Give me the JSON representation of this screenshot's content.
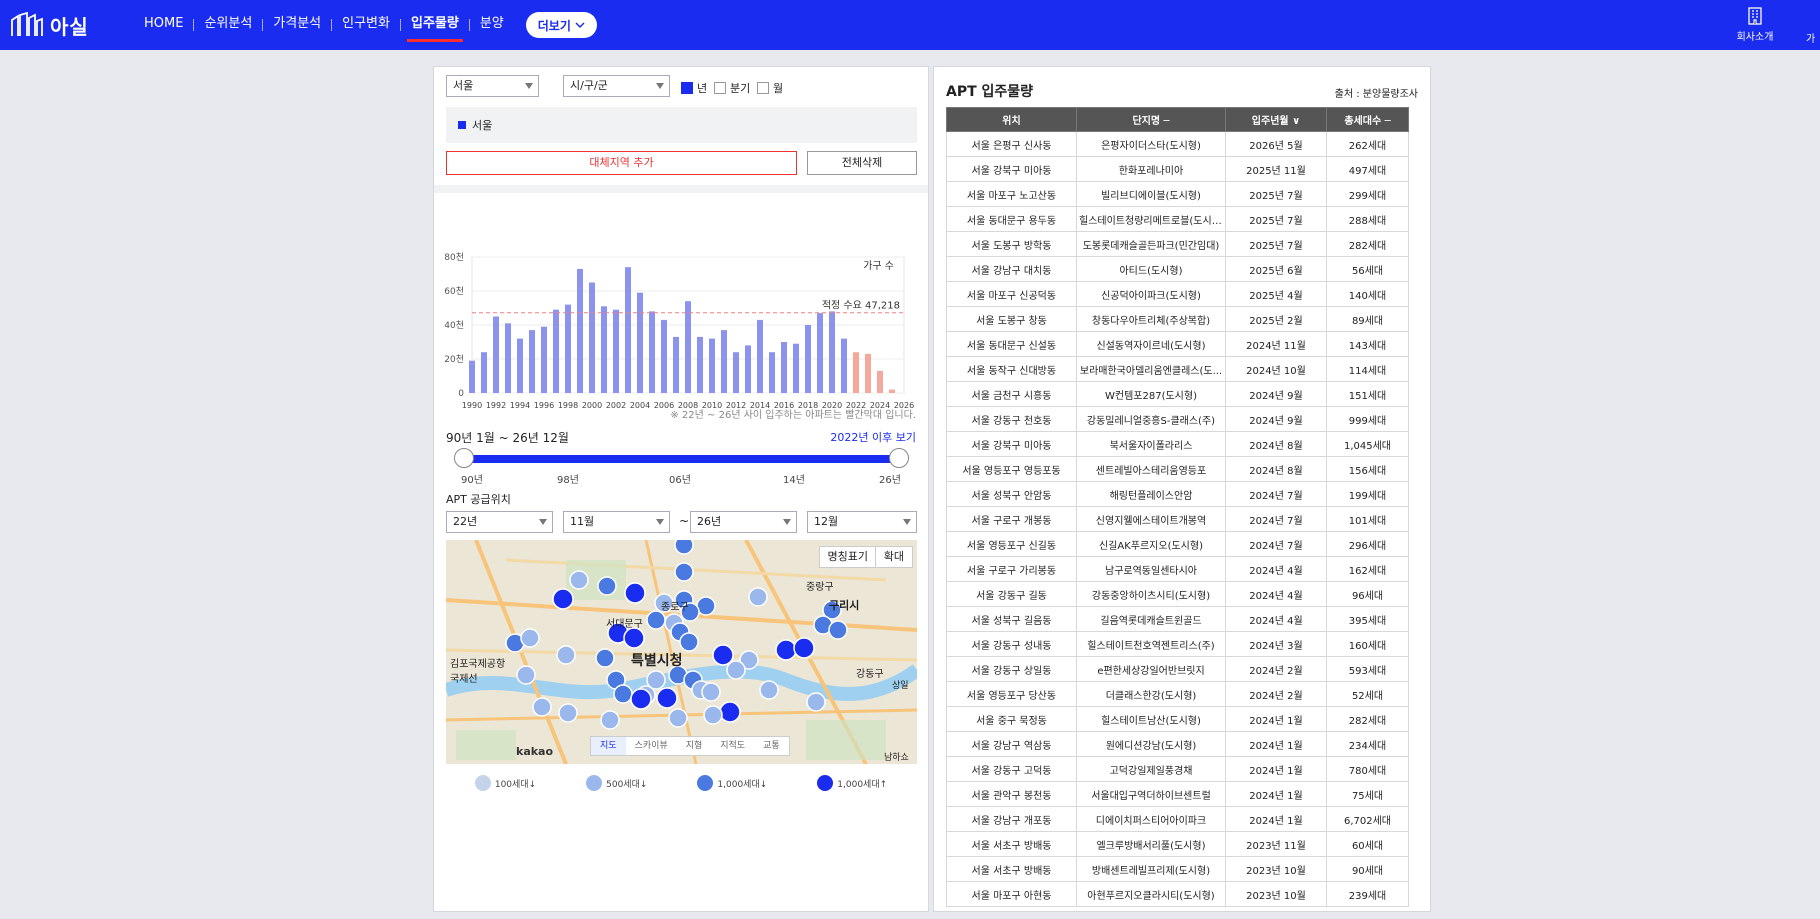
{
  "header": {
    "brand": "아실",
    "nav": [
      {
        "label": "HOME",
        "active": false
      },
      {
        "label": "순위분석",
        "active": false
      },
      {
        "label": "가격분석",
        "active": false
      },
      {
        "label": "인구변화",
        "active": false
      },
      {
        "label": "입주물량",
        "active": true
      },
      {
        "label": "분양",
        "active": false
      }
    ],
    "more_label": "더보기",
    "company_label": "회사소개",
    "edge_label": "가"
  },
  "filters": {
    "region": "서울",
    "district": "시/구/군",
    "periods": [
      {
        "label": "년",
        "checked": true
      },
      {
        "label": "분기",
        "checked": false
      },
      {
        "label": "월",
        "checked": false
      }
    ],
    "selected_region_chip": "서울",
    "add_button": "대체지역 추가",
    "clear_button": "전체삭제"
  },
  "chart_data": {
    "type": "bar",
    "series_label": "가구 수",
    "yticks": [
      "80천",
      "60천",
      "40천",
      "20천",
      "0"
    ],
    "xticks": [
      "1990",
      "1992",
      "1994",
      "1996",
      "1998",
      "2000",
      "2002",
      "2004",
      "2006",
      "2008",
      "2010",
      "2012",
      "2014",
      "2016",
      "2018",
      "2020",
      "2022",
      "2024",
      "2026"
    ],
    "ylim": [
      0,
      80000
    ],
    "x": [
      1990,
      1991,
      1992,
      1993,
      1994,
      1995,
      1996,
      1997,
      1998,
      1999,
      2000,
      2001,
      2002,
      2003,
      2004,
      2005,
      2006,
      2007,
      2008,
      2009,
      2010,
      2011,
      2012,
      2013,
      2014,
      2015,
      2016,
      2017,
      2018,
      2019,
      2020,
      2021,
      2022,
      2023,
      2024,
      2025,
      2026
    ],
    "values": [
      19000,
      24000,
      45000,
      41000,
      32000,
      37000,
      39000,
      49000,
      52000,
      73000,
      65000,
      51000,
      49000,
      74000,
      59000,
      48000,
      43000,
      33000,
      54000,
      33000,
      32000,
      37000,
      24000,
      28000,
      43000,
      24000,
      30000,
      29000,
      40000,
      47000,
      48000,
      32000,
      24000,
      23000,
      13000,
      2000,
      0
    ],
    "future_start": 2022,
    "reference_line": {
      "label": "적정 수요 47,218",
      "value": 47218
    },
    "colors": {
      "past": "#8c93ef",
      "future": "#f5a99d",
      "reference": "#f08080"
    },
    "note": "※ 22년 ~ 26년 사이 입주하는 아파트는 빨간막대 입니다."
  },
  "period": {
    "label": "90년 1월 ~ 26년 12월",
    "link": "2022년 이후 보기",
    "ticks": [
      "90년",
      "98년",
      "06년",
      "14년",
      "26년"
    ]
  },
  "supply": {
    "title": "APT 공급위치",
    "from_year": "22년",
    "from_month": "11월",
    "tilde": "~",
    "to_year": "26년",
    "to_month": "12월"
  },
  "map": {
    "name_btn": "명칭표기",
    "zoom_btn": "확대",
    "tabs": [
      {
        "label": "지도",
        "active": true
      },
      {
        "label": "스카이뷰",
        "active": false
      },
      {
        "label": "지형",
        "active": false
      },
      {
        "label": "지적도",
        "active": false
      },
      {
        "label": "교통",
        "active": false
      }
    ],
    "brand": "kakao",
    "labels": [
      "종로구",
      "서대문구",
      "특별시청",
      "구리시",
      "김포국제공항 국제선",
      "중랑구",
      "강동구",
      "상일",
      "남하쇼"
    ],
    "legend": [
      {
        "label": "100세대↓",
        "color": "#c5d3ea"
      },
      {
        "label": "500세대↓",
        "color": "#9bb8ec"
      },
      {
        "label": "1,000세대↓",
        "color": "#4a79e0"
      },
      {
        "label": "1,000세대↑",
        "color": "#1a2cf0"
      }
    ]
  },
  "apt": {
    "title": "APT 입주물량",
    "source": "출처 : 분양물량조사",
    "columns": [
      "위치",
      "단지명 ─",
      "입주년월 ∨",
      "총세대수 ─"
    ],
    "rows": [
      [
        "서울 은평구 신사동",
        "은평자이더스타(도시형)",
        "2026년 5월",
        "262세대"
      ],
      [
        "서울 강북구 미아동",
        "한화포레나미아",
        "2025년 11월",
        "497세대"
      ],
      [
        "서울 마포구 노고산동",
        "빌리브디에이블(도시형)",
        "2025년 7월",
        "299세대"
      ],
      [
        "서울 동대문구 용두동",
        "힐스테이트청량리메트로블(도시형)",
        "2025년 7월",
        "288세대"
      ],
      [
        "서울 도봉구 방학동",
        "도봉롯데캐슬골든파크(민간임대)",
        "2025년 7월",
        "282세대"
      ],
      [
        "서울 강남구 대치동",
        "아티드(도시형)",
        "2025년 6월",
        "56세대"
      ],
      [
        "서울 마포구 신공덕동",
        "신공덕아이파크(도시형)",
        "2025년 4월",
        "140세대"
      ],
      [
        "서울 도봉구 창동",
        "창동다우아트리체(주상복합)",
        "2025년 2월",
        "89세대"
      ],
      [
        "서울 동대문구 신설동",
        "신설동역자이르네(도시형)",
        "2024년 11월",
        "143세대"
      ],
      [
        "서울 동작구 신대방동",
        "보라매한국아델리움엔클레스(도...",
        "2024년 10월",
        "114세대"
      ],
      [
        "서울 금천구 시흥동",
        "W컨템포287(도시형)",
        "2024년 9월",
        "151세대"
      ],
      [
        "서울 강동구 천호동",
        "강동밀레니얼중흥S-클래스(주)",
        "2024년 9월",
        "999세대"
      ],
      [
        "서울 강북구 미아동",
        "북서울자이폴라리스",
        "2024년 8월",
        "1,045세대"
      ],
      [
        "서울 영등포구 영등포동",
        "센트레빌아스테리움영등포",
        "2024년 8월",
        "156세대"
      ],
      [
        "서울 성북구 안암동",
        "해링턴플레이스안암",
        "2024년 7월",
        "199세대"
      ],
      [
        "서울 구로구 개봉동",
        "신영지웰에스테이트개봉역",
        "2024년 7월",
        "101세대"
      ],
      [
        "서울 영등포구 신길동",
        "신길AK푸르지오(도시형)",
        "2024년 7월",
        "296세대"
      ],
      [
        "서울 구로구 가리봉동",
        "남구로역동일센타시아",
        "2024년 4월",
        "162세대"
      ],
      [
        "서울 강동구 길동",
        "강동중앙하이츠시티(도시형)",
        "2024년 4월",
        "96세대"
      ],
      [
        "서울 성북구 길음동",
        "길음역롯데캐슬트윈골드",
        "2024년 4월",
        "395세대"
      ],
      [
        "서울 강동구 성내동",
        "힐스테이트천호역젠트리스(주)",
        "2024년 3월",
        "160세대"
      ],
      [
        "서울 강동구 상일동",
        "e편한세상강일어반브릿지",
        "2024년 2월",
        "593세대"
      ],
      [
        "서울 영등포구 당산동",
        "더클래스한강(도시형)",
        "2024년 2월",
        "52세대"
      ],
      [
        "서울 중구 묵정동",
        "힐스테이트남산(도시형)",
        "2024년 1월",
        "282세대"
      ],
      [
        "서울 강남구 역삼동",
        "원에디션강남(도시형)",
        "2024년 1월",
        "234세대"
      ],
      [
        "서울 강동구 고덕동",
        "고덕강일제일풍경채",
        "2024년 1월",
        "780세대"
      ],
      [
        "서울 관악구 봉천동",
        "서울대입구역더하이브센트럴",
        "2024년 1월",
        "75세대"
      ],
      [
        "서울 강남구 개포동",
        "디에이치퍼스티어아이파크",
        "2024년 1월",
        "6,702세대"
      ],
      [
        "서울 서초구 방배동",
        "엘크루방배서리풀(도시형)",
        "2023년 11월",
        "60세대"
      ],
      [
        "서울 서초구 방배동",
        "방배센트레빌프리제(도시형)",
        "2023년 10월",
        "90세대"
      ],
      [
        "서울 마포구 아현동",
        "아현푸르지오클라시티(도시형)",
        "2023년 10월",
        "239세대"
      ]
    ]
  }
}
